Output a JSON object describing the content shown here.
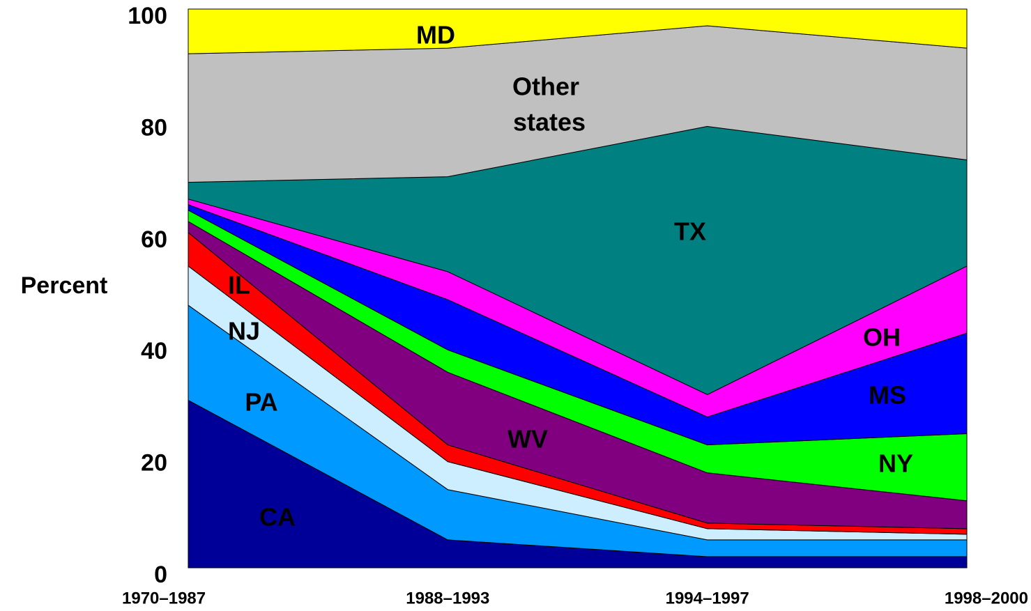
{
  "chart_data": {
    "type": "stacked_area",
    "y_label": "Percent",
    "categories": [
      "1970–1987",
      "1988–1993",
      "1994–1997",
      "1998–2000"
    ],
    "ylim": [
      0,
      100
    ],
    "yticks": [
      0,
      20,
      40,
      60,
      80,
      100
    ],
    "grid": false,
    "series": [
      {
        "name": "CA",
        "color": "#000099",
        "values": [
          30,
          5,
          2,
          2
        ]
      },
      {
        "name": "PA",
        "color": "#0099ff",
        "values": [
          17,
          9,
          3,
          3
        ]
      },
      {
        "name": "NJ",
        "color": "#cceeff",
        "values": [
          7,
          5,
          2,
          1
        ]
      },
      {
        "name": "IL",
        "color": "#ff0000",
        "values": [
          6,
          3,
          1,
          1
        ]
      },
      {
        "name": "WV",
        "color": "#800080",
        "values": [
          2,
          13,
          9,
          5
        ]
      },
      {
        "name": "NY",
        "color": "#00ff00",
        "values": [
          2,
          4,
          5,
          12
        ]
      },
      {
        "name": "MS",
        "color": "#0000ff",
        "values": [
          1,
          9,
          5,
          18
        ]
      },
      {
        "name": "OH",
        "color": "#ff00ff",
        "values": [
          1,
          5,
          4,
          12
        ]
      },
      {
        "name": "TX",
        "color": "#008080",
        "values": [
          3,
          17,
          48,
          19
        ]
      },
      {
        "name": "Other states",
        "color": "#c0c0c0",
        "values": [
          23,
          23,
          18,
          20
        ]
      },
      {
        "name": "MD",
        "color": "#ffff00",
        "values": [
          8,
          7,
          3,
          7
        ]
      }
    ]
  }
}
